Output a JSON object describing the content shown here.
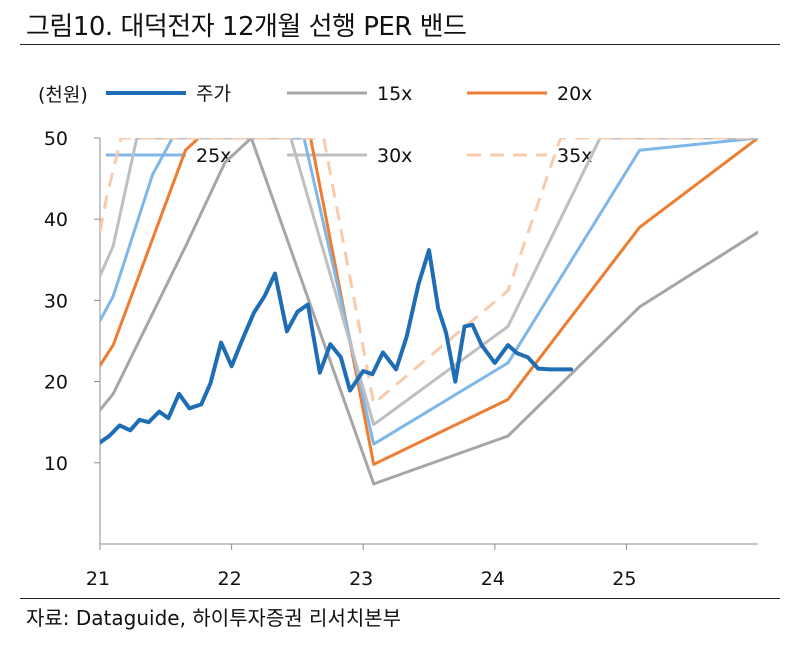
{
  "title": "그림10. 대덕전자 12개월 선행 PER 밴드",
  "source": "자료: Dataguide, 하이투자증권 리서치본부",
  "chart_data": {
    "type": "line",
    "ylabel": "(천원)",
    "ylim": [
      0,
      50
    ],
    "yticks": [
      10,
      20,
      30,
      40,
      50
    ],
    "xlim": [
      21,
      26
    ],
    "xticks": [
      21,
      22,
      23,
      24,
      25
    ],
    "grid": false,
    "legend_position": "top",
    "series": [
      {
        "name": "주가",
        "color": "#1F6EB5",
        "dash": false,
        "width": 4,
        "x": [
          21.0,
          21.07,
          21.15,
          21.23,
          21.3,
          21.37,
          21.45,
          21.52,
          21.6,
          21.68,
          21.77,
          21.84,
          21.92,
          22.0,
          22.08,
          22.17,
          22.25,
          22.33,
          22.42,
          22.5,
          22.58,
          22.67,
          22.75,
          22.83,
          22.9,
          23.0,
          23.07,
          23.15,
          23.25,
          23.33,
          23.42,
          23.5,
          23.57,
          23.63,
          23.7,
          23.77,
          23.83,
          23.9,
          24.0,
          24.1,
          24.17,
          24.25,
          24.33,
          24.42,
          24.5,
          24.58
        ],
        "y": [
          12.5,
          13.3,
          14.6,
          14.0,
          15.3,
          15.0,
          16.3,
          15.5,
          18.5,
          16.7,
          17.2,
          19.8,
          24.8,
          21.9,
          25.1,
          28.5,
          30.5,
          33.3,
          26.2,
          28.6,
          29.5,
          21.1,
          24.6,
          23.0,
          18.9,
          21.3,
          20.9,
          23.6,
          21.5,
          25.5,
          32.0,
          36.2,
          29.0,
          26.0,
          20.0,
          26.8,
          27.0,
          24.5,
          22.3,
          24.5,
          23.5,
          23.0,
          21.6,
          21.5,
          21.5,
          21.5
        ]
      },
      {
        "name": "15x",
        "color": "#A6A6A6",
        "dash": false,
        "width": 3,
        "x": [
          21.0,
          21.1,
          21.66,
          21.95,
          22.15,
          23.08,
          24.1,
          25.1,
          26.0
        ],
        "y": [
          16.5,
          18.5,
          37.0,
          47.0,
          50.0,
          7.4,
          13.3,
          29.2,
          38.4
        ]
      },
      {
        "name": "20x",
        "color": "#ED7D31",
        "dash": false,
        "width": 3,
        "x": [
          21.0,
          21.1,
          21.65,
          21.75,
          22.6,
          23.08,
          24.1,
          25.1,
          26.0
        ],
        "y": [
          22.0,
          24.5,
          48.5,
          50.0,
          50.0,
          9.8,
          17.8,
          39.0,
          50.0
        ]
      },
      {
        "name": "25x",
        "color": "#7FB7E8",
        "dash": false,
        "width": 3,
        "x": [
          21.0,
          21.1,
          21.4,
          21.55,
          22.55,
          23.08,
          24.1,
          25.1,
          26.0
        ],
        "y": [
          27.5,
          30.5,
          45.5,
          50.0,
          50.0,
          12.3,
          22.3,
          48.5,
          50.0
        ]
      },
      {
        "name": "30x",
        "color": "#BFBFBF",
        "dash": false,
        "width": 3,
        "x": [
          21.0,
          21.1,
          21.28,
          22.45,
          23.08,
          24.1,
          24.8,
          26.0
        ],
        "y": [
          33.0,
          36.7,
          50.0,
          50.0,
          14.7,
          26.8,
          50.0,
          50.0
        ]
      },
      {
        "name": "35x",
        "color": "#F8CBAD",
        "dash": true,
        "width": 3,
        "x": [
          21.0,
          21.05,
          21.16,
          22.7,
          23.08,
          24.1,
          24.5,
          26.0
        ],
        "y": [
          38.5,
          42.7,
          50.0,
          50.0,
          17.3,
          31.2,
          50.0,
          50.0
        ]
      }
    ]
  }
}
